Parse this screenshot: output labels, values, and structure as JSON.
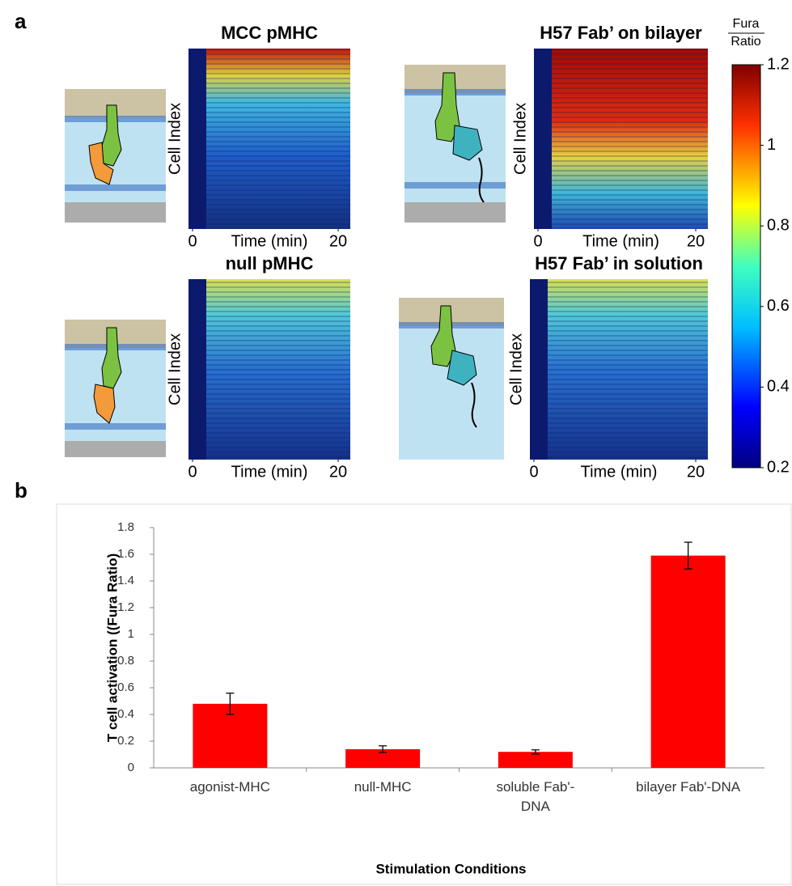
{
  "panel_labels": [
    "a",
    "b"
  ],
  "heatmaps": [
    {
      "title": "MCC pMHC",
      "ylabel": "Cell Index",
      "xlabel": "Time (min)",
      "xlim": [
        0,
        20
      ],
      "xticks": [
        0,
        20
      ]
    },
    {
      "title": "H57 Fab’ on bilayer",
      "ylabel": "Cell Index",
      "xlabel": "Time (min)",
      "xlim": [
        0,
        20
      ],
      "xticks": [
        0,
        20
      ]
    },
    {
      "title": "null pMHC",
      "ylabel": "Cell Index",
      "xlabel": "Time (min)",
      "xlim": [
        0,
        20
      ],
      "xticks": [
        0,
        20
      ]
    },
    {
      "title": "H57 Fab’ in solution",
      "ylabel": "Cell Index",
      "xlabel": "Time (min)",
      "xlim": [
        0,
        20
      ],
      "xticks": [
        0,
        20
      ]
    }
  ],
  "colorbar": {
    "title": [
      "Fura",
      "Ratio"
    ],
    "lim": [
      0.2,
      1.2
    ],
    "ticks": [
      0.2,
      0.4,
      0.6,
      0.8,
      1,
      1.2
    ]
  },
  "chart_data": {
    "type": "bar",
    "categories": [
      "agonist-MHC",
      "null-MHC",
      "soluble Fab'-DNA",
      "bilayer Fab'-DNA"
    ],
    "values": [
      0.48,
      0.14,
      0.12,
      1.59
    ],
    "errors": [
      0.08,
      0.025,
      0.015,
      0.1
    ],
    "color": "#ff0000",
    "ylim": [
      0,
      1.8
    ],
    "yticks": [
      0,
      0.2,
      0.4,
      0.6,
      0.8,
      1,
      1.2,
      1.4,
      1.6,
      1.8
    ],
    "ylabel": "T cell activation ((Fura Ratio)",
    "xlabel": "Stimulation Conditions"
  }
}
